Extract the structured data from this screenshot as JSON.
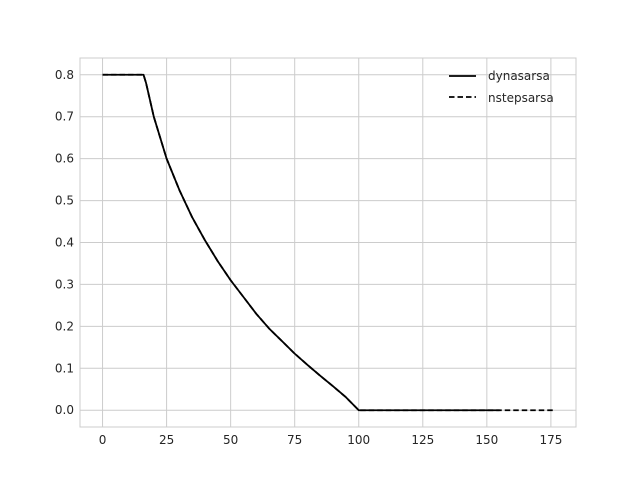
{
  "chart_data": {
    "type": "line",
    "title": "",
    "xlabel": "",
    "ylabel": "",
    "xlim": [
      -8.8,
      184.8
    ],
    "ylim": [
      -0.04,
      0.84
    ],
    "xticks": [
      0,
      25,
      50,
      75,
      100,
      125,
      150,
      175
    ],
    "yticks": [
      0.0,
      0.1,
      0.2,
      0.3,
      0.4,
      0.5,
      0.6,
      0.7,
      0.8
    ],
    "ytick_labels": [
      "0.0",
      "0.1",
      "0.2",
      "0.3",
      "0.4",
      "0.5",
      "0.6",
      "0.7",
      "0.8"
    ],
    "grid": true,
    "legend_position": "top-right",
    "series": [
      {
        "name": "dynasarsa",
        "line_style": "solid",
        "color": "#000000",
        "x": [
          0,
          5,
          10,
          15,
          16,
          17,
          20,
          25,
          30,
          35,
          40,
          45,
          50,
          55,
          60,
          65,
          70,
          75,
          80,
          85,
          90,
          95,
          100,
          110,
          120,
          130,
          140,
          150,
          155
        ],
        "y": [
          0.8,
          0.8,
          0.8,
          0.8,
          0.8,
          0.78,
          0.7,
          0.6,
          0.525,
          0.46,
          0.405,
          0.355,
          0.31,
          0.27,
          0.23,
          0.195,
          0.165,
          0.135,
          0.108,
          0.082,
          0.057,
          0.031,
          0.0,
          0.0,
          0.0,
          0.0,
          0.0,
          0.0,
          0.0
        ]
      },
      {
        "name": "nstepsarsa",
        "line_style": "dashed",
        "color": "#000000",
        "x": [
          0,
          5,
          10,
          15,
          16,
          17,
          20,
          25,
          30,
          35,
          40,
          45,
          50,
          55,
          60,
          65,
          70,
          75,
          80,
          85,
          90,
          95,
          100,
          120,
          140,
          160,
          176
        ],
        "y": [
          0.8,
          0.8,
          0.8,
          0.8,
          0.8,
          0.78,
          0.7,
          0.6,
          0.525,
          0.46,
          0.405,
          0.355,
          0.31,
          0.27,
          0.23,
          0.195,
          0.165,
          0.135,
          0.108,
          0.082,
          0.057,
          0.031,
          0.0,
          0.0,
          0.0,
          0.0,
          0.0
        ]
      }
    ]
  }
}
